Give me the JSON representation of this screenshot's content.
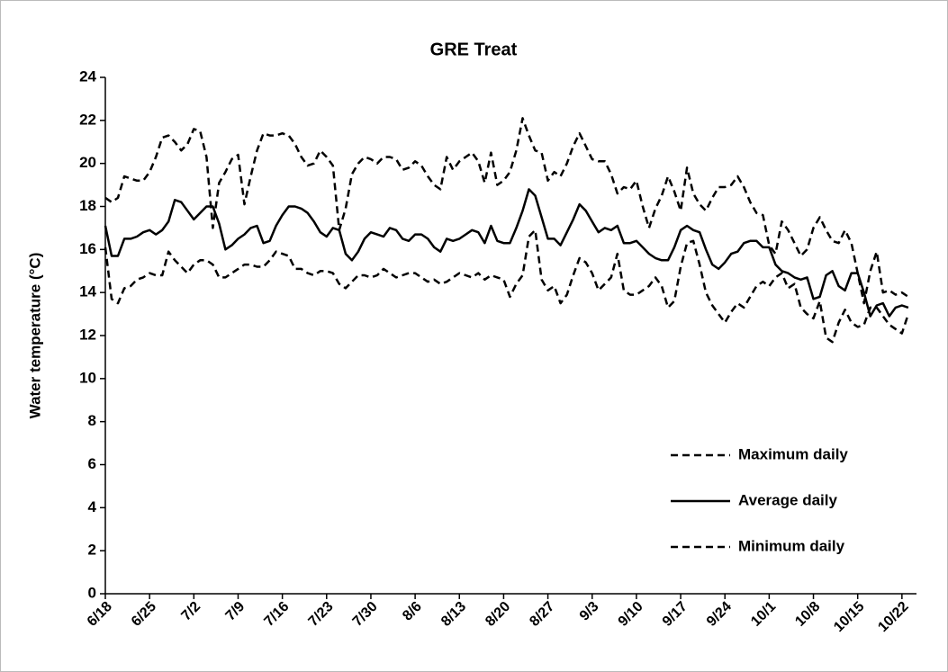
{
  "chart_data": {
    "type": "line",
    "title": "GRE Treat",
    "y_label": "Water temperature (°C)",
    "categories": [
      "6/18",
      null,
      null,
      null,
      null,
      null,
      null,
      "6/25",
      null,
      null,
      null,
      null,
      null,
      null,
      "7/2",
      null,
      null,
      null,
      null,
      null,
      null,
      "7/9",
      null,
      null,
      null,
      null,
      null,
      null,
      "7/16",
      null,
      null,
      null,
      null,
      null,
      null,
      "7/23",
      null,
      null,
      null,
      null,
      null,
      null,
      "7/30",
      null,
      null,
      null,
      null,
      null,
      null,
      "8/6",
      null,
      null,
      null,
      null,
      null,
      null,
      "8/13",
      null,
      null,
      null,
      null,
      null,
      null,
      "8/20",
      null,
      null,
      null,
      null,
      null,
      null,
      "8/27",
      null,
      null,
      null,
      null,
      null,
      null,
      "9/3",
      null,
      null,
      null,
      null,
      null,
      null,
      "9/10",
      null,
      null,
      null,
      null,
      null,
      null,
      "9/17",
      null,
      null,
      null,
      null,
      null,
      null,
      "9/24",
      null,
      null,
      null,
      null,
      null,
      null,
      "10/1",
      null,
      null,
      null,
      null,
      null,
      null,
      "10/8",
      null,
      null,
      null,
      null,
      null,
      null,
      "10/15",
      null,
      null,
      null,
      null,
      null,
      null,
      "10/22",
      null
    ],
    "series": [
      {
        "name": "Maximum daily",
        "color": "#000000",
        "dashed": true,
        "values": [
          18.4,
          18.2,
          18.4,
          19.4,
          19.3,
          19.2,
          19.2,
          19.6,
          20.3,
          21.2,
          21.3,
          21.0,
          20.6,
          20.9,
          21.6,
          21.5,
          20.3,
          17.0,
          19.1,
          19.6,
          20.2,
          20.4,
          18.1,
          19.4,
          20.6,
          21.4,
          21.3,
          21.3,
          21.4,
          21.3,
          20.9,
          20.3,
          19.9,
          20.0,
          20.6,
          20.3,
          19.9,
          16.9,
          17.9,
          19.5,
          20.0,
          20.3,
          20.2,
          20.0,
          20.3,
          20.3,
          20.2,
          19.7,
          19.8,
          20.1,
          19.9,
          19.4,
          19.0,
          18.8,
          20.3,
          19.7,
          20.1,
          20.3,
          20.5,
          20.1,
          19.1,
          20.5,
          19.0,
          19.2,
          19.6,
          20.6,
          22.1,
          21.3,
          20.6,
          20.5,
          19.2,
          19.6,
          19.4,
          20.0,
          20.8,
          21.4,
          20.8,
          20.2,
          20.1,
          20.1,
          19.5,
          18.6,
          18.9,
          18.8,
          19.2,
          18.0,
          17.0,
          17.9,
          18.5,
          19.4,
          18.7,
          17.8,
          19.8,
          18.6,
          18.1,
          17.8,
          18.4,
          18.9,
          18.9,
          19.0,
          19.4,
          18.9,
          18.2,
          17.7,
          17.6,
          16.2,
          15.8,
          17.3,
          16.9,
          16.3,
          15.7,
          16.0,
          17.0,
          17.5,
          16.9,
          16.4,
          16.3,
          16.9,
          16.3,
          14.9,
          13.5,
          15.0,
          15.9,
          14.0,
          14.1,
          13.9,
          14.0,
          13.8
        ]
      },
      {
        "name": "Average daily",
        "color": "#000000",
        "dashed": false,
        "values": [
          17.1,
          15.7,
          15.7,
          16.5,
          16.5,
          16.6,
          16.8,
          16.9,
          16.7,
          16.9,
          17.3,
          18.3,
          18.2,
          17.8,
          17.4,
          17.7,
          18.0,
          18.0,
          17.2,
          16.0,
          16.2,
          16.5,
          16.7,
          17.0,
          17.1,
          16.3,
          16.4,
          17.1,
          17.6,
          18.0,
          18.0,
          17.9,
          17.7,
          17.3,
          16.8,
          16.6,
          17.0,
          16.9,
          15.8,
          15.5,
          15.9,
          16.5,
          16.8,
          16.7,
          16.6,
          17.0,
          16.9,
          16.5,
          16.4,
          16.7,
          16.7,
          16.5,
          16.1,
          15.9,
          16.5,
          16.4,
          16.5,
          16.7,
          16.9,
          16.8,
          16.3,
          17.1,
          16.4,
          16.3,
          16.3,
          17.0,
          17.8,
          18.8,
          18.5,
          17.5,
          16.5,
          16.5,
          16.2,
          16.8,
          17.4,
          18.1,
          17.8,
          17.3,
          16.8,
          17.0,
          16.9,
          17.1,
          16.3,
          16.3,
          16.4,
          16.1,
          15.8,
          15.6,
          15.5,
          15.5,
          16.1,
          16.9,
          17.1,
          16.9,
          16.8,
          16.0,
          15.3,
          15.1,
          15.4,
          15.8,
          15.9,
          16.3,
          16.4,
          16.4,
          16.1,
          16.1,
          15.3,
          15.0,
          14.9,
          14.7,
          14.6,
          14.7,
          13.7,
          13.8,
          14.8,
          15.0,
          14.3,
          14.1,
          14.9,
          14.9,
          14.0,
          12.9,
          13.4,
          13.5,
          12.9,
          13.3,
          13.4,
          13.3
        ]
      },
      {
        "name": "Minimum daily",
        "color": "#000000",
        "dashed": true,
        "values": [
          16.1,
          13.7,
          13.5,
          14.2,
          14.3,
          14.6,
          14.7,
          14.9,
          14.8,
          14.8,
          15.9,
          15.5,
          15.2,
          14.9,
          15.3,
          15.5,
          15.5,
          15.3,
          14.7,
          14.7,
          14.9,
          15.1,
          15.3,
          15.3,
          15.2,
          15.2,
          15.5,
          15.9,
          15.8,
          15.7,
          15.1,
          15.1,
          14.9,
          14.8,
          15.0,
          15.0,
          14.9,
          14.4,
          14.2,
          14.5,
          14.8,
          14.8,
          14.7,
          14.8,
          15.1,
          14.9,
          14.7,
          14.8,
          14.9,
          14.9,
          14.7,
          14.5,
          14.6,
          14.4,
          14.5,
          14.7,
          14.9,
          14.8,
          14.7,
          14.9,
          14.6,
          14.8,
          14.7,
          14.6,
          13.8,
          14.4,
          14.8,
          16.6,
          16.9,
          14.6,
          14.1,
          14.3,
          13.5,
          13.9,
          14.8,
          15.6,
          15.4,
          14.9,
          14.1,
          14.4,
          14.7,
          15.8,
          14.1,
          13.9,
          13.9,
          14.1,
          14.3,
          14.7,
          14.3,
          13.3,
          13.6,
          15.2,
          16.3,
          16.4,
          15.3,
          14.0,
          13.4,
          13.0,
          12.6,
          13.1,
          13.5,
          13.3,
          13.8,
          14.3,
          14.5,
          14.3,
          14.7,
          14.9,
          14.2,
          14.4,
          13.3,
          13.0,
          12.8,
          13.6,
          11.9,
          11.7,
          12.6,
          13.2,
          12.6,
          12.4,
          12.5,
          13.3,
          13.3,
          12.9,
          12.5,
          12.3,
          12.1,
          13.0
        ]
      }
    ],
    "ylim": [
      0,
      24
    ],
    "yticks": [
      0,
      2,
      4,
      6,
      8,
      10,
      12,
      14,
      16,
      18,
      20,
      22,
      24
    ],
    "grid": false,
    "legend": "lower right"
  }
}
